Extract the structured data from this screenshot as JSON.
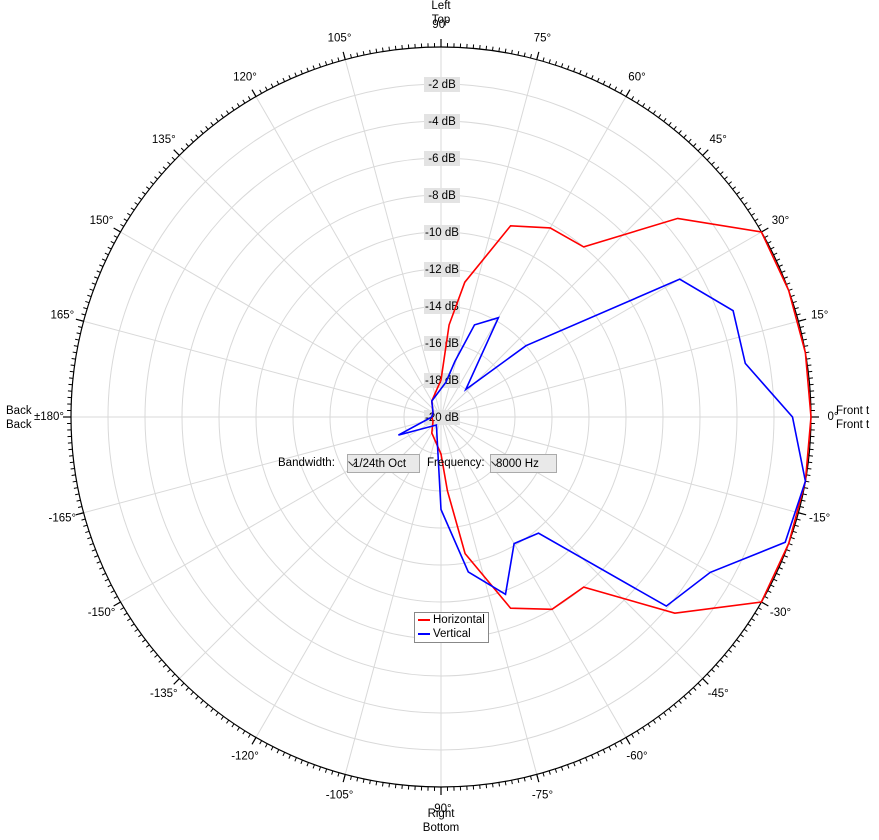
{
  "chart_data": {
    "type": "polar",
    "series": [
      {
        "name": "Horizontal",
        "color": "#ff0000",
        "x": [
          -180,
          -150,
          -120,
          -90,
          -85,
          -80,
          -70,
          -60,
          -50,
          -40,
          -30,
          -20,
          -10,
          0,
          10,
          20,
          30,
          40,
          50,
          60,
          70,
          80,
          85,
          90,
          120,
          150,
          180
        ],
        "values": [
          -19.5,
          -19.5,
          -19,
          -18,
          -16,
          -12.5,
          -9,
          -8,
          -8,
          -3.5,
          0,
          0,
          0,
          0,
          0,
          0,
          0,
          -3.3,
          -8,
          -8.2,
          -9,
          -12.6,
          -15,
          -18,
          -19,
          -19.5,
          -19.5
        ]
      },
      {
        "name": "Vertical",
        "color": "#0000ff",
        "x": [
          -180,
          -157,
          -120,
          -90,
          -80,
          -70,
          -60,
          -50,
          -40,
          -30,
          -20,
          -10,
          0,
          10,
          20,
          30,
          40,
          48,
          60,
          70,
          76,
          82,
          120,
          150,
          180
        ],
        "values": [
          -19.5,
          -17.5,
          -19.5,
          -15,
          -11.5,
          -9.8,
          -12.1,
          -11.8,
          -4.1,
          -3.2,
          -0.2,
          0,
          -1,
          -3.3,
          -3.2,
          -5.1,
          -14,
          -18,
          -13.8,
          -14.7,
          -16.9,
          -18.1,
          -19,
          -19.5,
          -19.5
        ]
      }
    ],
    "xlim": [
      -180,
      180
    ],
    "xticks": [
      {
        "value": 90,
        "label": "90°"
      },
      {
        "value": 105,
        "label": "105°"
      },
      {
        "value": 120,
        "label": "120°"
      },
      {
        "value": 135,
        "label": "135°"
      },
      {
        "value": 150,
        "label": "150°"
      },
      {
        "value": 165,
        "label": "165°"
      },
      {
        "value": 180,
        "label": "±180°"
      },
      {
        "value": -165,
        "label": "-165°"
      },
      {
        "value": -150,
        "label": "-150°"
      },
      {
        "value": -135,
        "label": "-135°"
      },
      {
        "value": -120,
        "label": "-120°"
      },
      {
        "value": -105,
        "label": "-105°"
      },
      {
        "value": -90,
        "label": "-90°"
      },
      {
        "value": -75,
        "label": "-75°"
      },
      {
        "value": -60,
        "label": "-60°"
      },
      {
        "value": -45,
        "label": "-45°"
      },
      {
        "value": -30,
        "label": "-30°"
      },
      {
        "value": -15,
        "label": "-15°"
      },
      {
        "value": 0,
        "label": "0°"
      },
      {
        "value": 15,
        "label": "15°"
      },
      {
        "value": 30,
        "label": "30°"
      },
      {
        "value": 45,
        "label": "45°"
      },
      {
        "value": 60,
        "label": "60°"
      },
      {
        "value": 75,
        "label": "75°"
      }
    ],
    "xminor": 1,
    "ylim": [
      -20,
      0
    ],
    "yticks": [
      {
        "value": -2,
        "label": "-2 dB"
      },
      {
        "value": -4,
        "label": "-4 dB"
      },
      {
        "value": -6,
        "label": "-6 dB"
      },
      {
        "value": -8,
        "label": "-8 dB"
      },
      {
        "value": -10,
        "label": "-10 dB"
      },
      {
        "value": -12,
        "label": "-12 dB"
      },
      {
        "value": -14,
        "label": "-14 dB"
      },
      {
        "value": -16,
        "label": "-16 dB"
      },
      {
        "value": -18,
        "label": "-18 dB"
      },
      {
        "value": -20,
        "label": "-20 dB"
      }
    ],
    "grid": true,
    "axis_ends": {
      "top": [
        "Left",
        "Top"
      ],
      "bottom": [
        "Right",
        "Bottom"
      ],
      "left": [
        "Back",
        "Back"
      ],
      "right": [
        "Front t",
        "Front t"
      ]
    }
  },
  "controls": {
    "bandwidth_label": "Bandwidth:",
    "bandwidth_value": "1/24th Oct",
    "frequency_label": "Frequency:",
    "frequency_value": "8000 Hz"
  }
}
